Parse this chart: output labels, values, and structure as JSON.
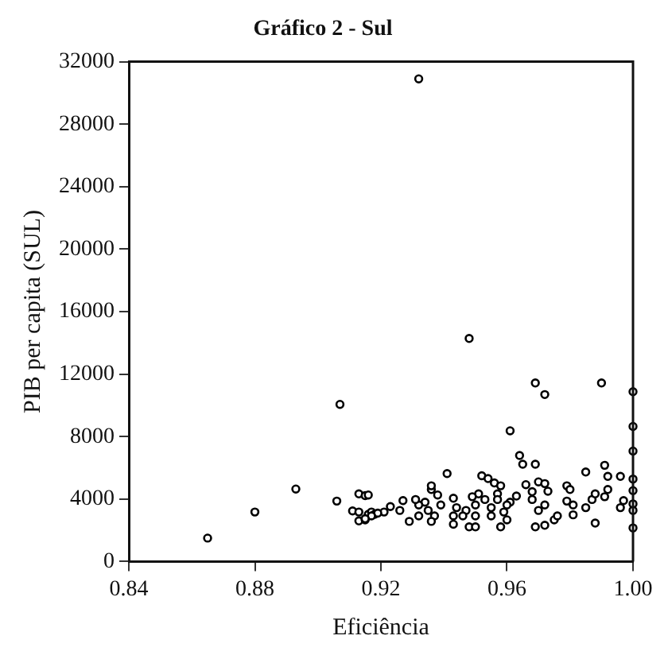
{
  "chart_data": {
    "type": "scatter",
    "title": "Gráfico 2 - Sul",
    "xlabel": "Eficiência",
    "ylabel": "PIB per capita (SUL)",
    "xlim": [
      0.84,
      1.0
    ],
    "xticks": [
      {
        "value": 0.84,
        "label": "0.84"
      },
      {
        "value": 0.88,
        "label": "0.88"
      },
      {
        "value": 0.92,
        "label": "0.92"
      },
      {
        "value": 0.96,
        "label": "0.96"
      },
      {
        "value": 1.0,
        "label": "1.00"
      }
    ],
    "ylim": [
      0,
      32000
    ],
    "yticks": [
      0,
      4000,
      8000,
      12000,
      16000,
      20000,
      24000,
      28000,
      32000
    ],
    "grid": false,
    "legend": false,
    "marker": "circle",
    "series": [
      {
        "color": "#000000",
        "x": [
          0.865,
          0.88,
          0.893,
          0.907,
          0.906,
          0.913,
          0.915,
          0.911,
          0.913,
          0.913,
          0.915,
          0.916,
          0.917,
          0.918,
          0.932,
          0.948,
          0.969,
          0.972,
          0.99,
          1.0,
          0.961,
          1.0,
          1.0,
          0.964,
          0.965,
          0.969,
          0.941,
          0.952,
          0.954,
          0.956,
          0.958,
          0.985,
          0.991,
          0.992,
          0.996,
          1.0,
          1.0,
          1.0,
          1.0,
          1.0,
          0.966,
          0.97,
          0.972,
          0.968,
          0.973,
          0.968,
          0.972,
          0.97,
          0.969,
          0.972,
          0.975,
          0.976,
          0.979,
          0.98,
          0.979,
          0.981,
          0.981,
          0.985,
          0.987,
          0.988,
          0.988,
          0.991,
          0.992,
          0.996,
          0.997,
          0.963,
          0.961,
          0.96,
          0.958,
          0.96,
          0.959,
          0.957,
          0.957,
          0.955,
          0.955,
          0.953,
          0.951,
          0.95,
          0.95,
          0.949,
          0.947,
          0.948,
          0.95,
          0.946,
          0.944,
          0.943,
          0.943,
          0.943,
          0.939,
          0.938,
          0.936,
          0.936,
          0.937,
          0.936,
          0.935,
          0.934,
          0.932,
          0.931,
          0.932,
          0.929,
          0.927,
          0.926,
          0.923,
          0.921,
          0.919,
          0.917,
          0.916,
          0.915
        ],
        "values": [
          1500,
          3170,
          4640,
          10060,
          3870,
          4330,
          4220,
          3240,
          3170,
          2600,
          2670,
          3020,
          3170,
          3020,
          30900,
          14280,
          11430,
          10690,
          11430,
          10870,
          8370,
          8650,
          7070,
          6790,
          6230,
          6230,
          5630,
          5490,
          5310,
          5030,
          4850,
          5730,
          6160,
          5450,
          5450,
          5280,
          4540,
          3690,
          3270,
          2150,
          4920,
          5100,
          4990,
          4470,
          4500,
          3970,
          3620,
          3270,
          2220,
          2320,
          2670,
          2920,
          4850,
          4610,
          3870,
          3620,
          2990,
          3450,
          3970,
          2460,
          4330,
          4150,
          4610,
          3450,
          3900,
          4190,
          3800,
          3620,
          2220,
          2670,
          3170,
          4330,
          3970,
          3450,
          2920,
          3970,
          4330,
          3620,
          2920,
          4150,
          3270,
          2220,
          2220,
          2920,
          3450,
          2390,
          4050,
          2920,
          3620,
          4260,
          4610,
          4850,
          2920,
          2570,
          3270,
          3800,
          3620,
          3970,
          2920,
          2570,
          3900,
          3270,
          3520,
          3170,
          3100,
          2920,
          4260,
          2740
        ]
      }
    ]
  }
}
